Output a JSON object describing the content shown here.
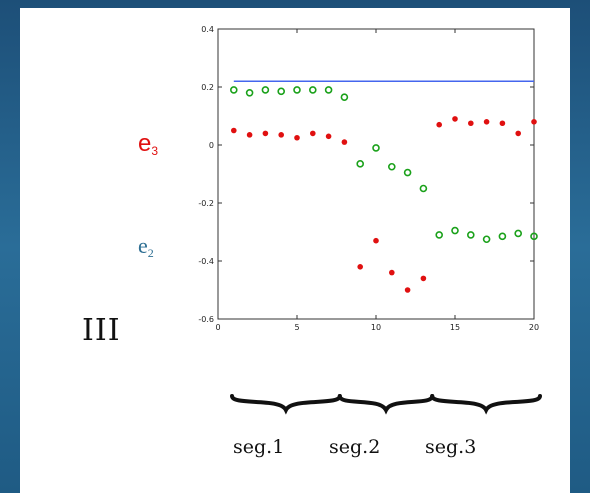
{
  "labels": {
    "roman": "III",
    "e3_base": "e",
    "e3_sub": "3",
    "e2_base": "e",
    "e2_sub": "2",
    "segments": [
      "seg.1",
      "seg.2",
      "seg.3"
    ]
  },
  "colors": {
    "e3": "#e01010",
    "e2": "#1aa11a",
    "reference_line": "#4466ee",
    "background": "#1d4f78"
  },
  "chart_data": {
    "type": "scatter",
    "xlim": [
      0,
      20
    ],
    "ylim": [
      -0.6,
      0.4
    ],
    "xticks": [
      0,
      5,
      10,
      15,
      20
    ],
    "yticks": [
      0.4,
      0.2,
      0,
      -0.2,
      -0.4,
      -0.6
    ],
    "ytick_labels": [
      "0.4",
      "0.2",
      "0",
      "-0.2",
      "-0.4",
      "-0.6"
    ],
    "reference_line": {
      "x": [
        1,
        20
      ],
      "y": 0.22
    },
    "series": [
      {
        "label": "e3",
        "marker": "dot",
        "x": [
          1,
          2,
          3,
          4,
          5,
          6,
          7,
          8,
          9,
          10,
          11,
          12,
          13,
          14,
          15,
          16,
          17,
          18,
          19,
          20
        ],
        "y": [
          0.05,
          0.035,
          0.04,
          0.035,
          0.025,
          0.04,
          0.03,
          0.01,
          -0.42,
          -0.33,
          -0.44,
          -0.5,
          -0.46,
          0.07,
          0.09,
          0.075,
          0.08,
          0.075,
          0.04,
          0.08
        ]
      },
      {
        "label": "e2",
        "marker": "circle",
        "x": [
          1,
          2,
          3,
          4,
          5,
          6,
          7,
          8,
          9,
          10,
          11,
          12,
          13,
          14,
          15,
          16,
          17,
          18,
          19,
          20
        ],
        "y": [
          0.19,
          0.18,
          0.19,
          0.185,
          0.19,
          0.19,
          0.19,
          0.165,
          -0.065,
          -0.01,
          -0.075,
          -0.095,
          -0.15,
          -0.31,
          -0.295,
          -0.31,
          -0.325,
          -0.315,
          -0.305,
          -0.315
        ]
      }
    ],
    "segment_boundaries": [
      0,
      7,
      13,
      20
    ]
  }
}
